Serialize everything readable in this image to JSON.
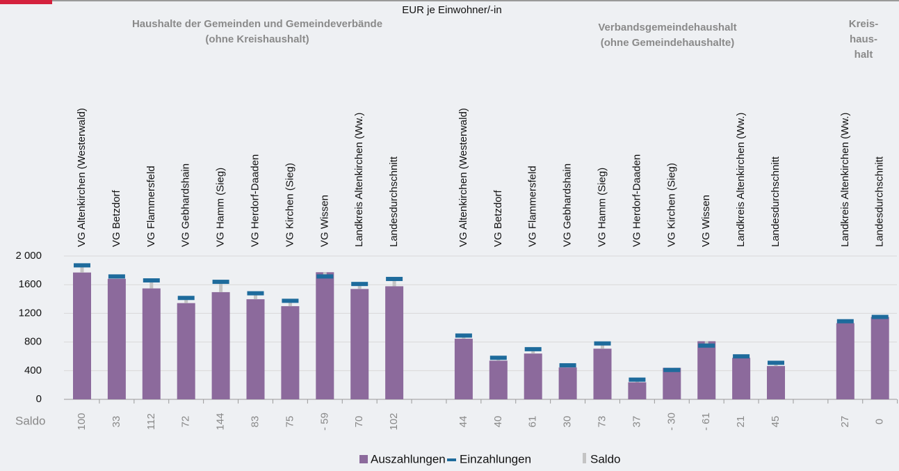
{
  "chart_data": {
    "type": "bar",
    "unit_label": "EUR je Einwohner/-in",
    "groups": [
      {
        "lines": [
          "Haushalte der Gemeinden und Gemeindeverbände",
          "(ohne Kreishaushalt)"
        ]
      },
      {
        "lines": [
          "Verbandsgemeindehaushalt",
          "(ohne Gemeindehaushalte)"
        ]
      },
      {
        "lines": [
          "Kreis-",
          "haus-",
          "halt"
        ]
      }
    ],
    "categories": [
      "VG Altenkirchen (Westerwald)",
      "VG Betzdorf",
      "VG Flammersfeld",
      "VG Gebhardshain",
      "VG Hamm (Sieg)",
      "VG Herdorf-Daaden",
      "VG Kirchen (Sieg)",
      "VG Wissen",
      "Landkreis Altenkirchen (Ww.)",
      "Landesdurchschnitt",
      null,
      "VG Altenkirchen (Westerwald)",
      "VG Betzdorf",
      "VG Flammersfeld",
      "VG Gebhardshain",
      "VG Hamm (Sieg)",
      "VG Herdorf-Daaden",
      "VG Kirchen (Sieg)",
      "VG Wissen",
      "Landkreis Altenkirchen (Ww.)",
      "Landesdurchschnitt",
      null,
      "Landkreis Altenkirchen (Ww.)",
      "Landesdurchschnitt"
    ],
    "series": [
      {
        "name": "Auszahlungen",
        "color": "#8c6a9c",
        "values": [
          1770,
          1682,
          1548,
          1343,
          1496,
          1397,
          1300,
          1774,
          1540,
          1578,
          null,
          846,
          540,
          639,
          445,
          707,
          238,
          440,
          811,
          579,
          465,
          null,
          1063,
          1150
        ]
      },
      {
        "name": "Einzahlungen",
        "color": "#1e6b9c",
        "values": [
          1870,
          1715,
          1660,
          1415,
          1640,
          1480,
          1375,
          1715,
          1610,
          1680,
          null,
          890,
          580,
          700,
          475,
          780,
          275,
          410,
          750,
          600,
          510,
          null,
          1090,
          1150
        ]
      },
      {
        "name": "Saldo",
        "color": "#c4c4c4",
        "row_label": "Saldo",
        "values": [
          100,
          33,
          112,
          72,
          144,
          83,
          75,
          -59,
          70,
          102,
          null,
          44,
          40,
          61,
          30,
          73,
          37,
          -30,
          -61,
          21,
          45,
          null,
          27,
          0
        ],
        "value_labels": [
          null,
          null,
          null,
          null,
          null,
          null,
          null,
          "- 59",
          null,
          null,
          null,
          null,
          null,
          null,
          null,
          null,
          null,
          "- 30",
          "- 61",
          null,
          null,
          null,
          null,
          null
        ]
      }
    ],
    "ylim": [
      0,
      2000
    ],
    "yticks": [
      0,
      400,
      800,
      1200,
      1600,
      {
        "value": 2000,
        "label": "2 000"
      }
    ],
    "grid": true
  }
}
